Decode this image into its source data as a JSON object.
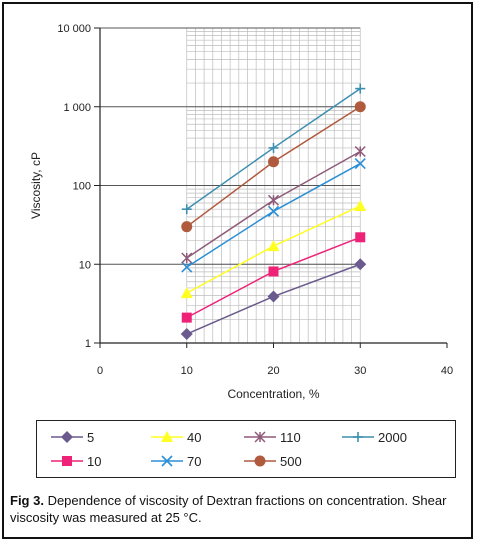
{
  "chart_data": {
    "type": "line",
    "xlabel": "Concentration, %",
    "ylabel": "Viscosity, cP",
    "xlim": [
      0,
      40
    ],
    "ylim": [
      1,
      10000
    ],
    "y_scale": "log",
    "x_ticks": [
      "0",
      "10",
      "20",
      "30",
      "40"
    ],
    "y_ticks": [
      "1",
      "10",
      "100",
      "1 000",
      "10 000"
    ],
    "grid": true,
    "legend_position": "bottom",
    "x": [
      10,
      20,
      30
    ],
    "series": [
      {
        "name": "5",
        "values": [
          1.3,
          3.9,
          10
        ],
        "color": "#6b5a8e",
        "marker": "diamond"
      },
      {
        "name": "10",
        "values": [
          2.1,
          8.1,
          22
        ],
        "color": "#ee2277",
        "marker": "square"
      },
      {
        "name": "40",
        "values": [
          4.3,
          17,
          55
        ],
        "color": "#ffff22",
        "marker": "triangle"
      },
      {
        "name": "70",
        "values": [
          9.2,
          47,
          190
        ],
        "color": "#2b8fd6",
        "marker": "x"
      },
      {
        "name": "110",
        "values": [
          12,
          65,
          270
        ],
        "color": "#8e5a78",
        "marker": "star"
      },
      {
        "name": "500",
        "values": [
          30,
          200,
          1000
        ],
        "color": "#b05a3e",
        "marker": "circle"
      },
      {
        "name": "2000",
        "values": [
          50,
          300,
          1700
        ],
        "color": "#3d8fb0",
        "marker": "plus"
      }
    ],
    "legend_order": [
      "5",
      "40",
      "110",
      "2000",
      "10",
      "70",
      "500"
    ]
  },
  "caption": {
    "label": "Fig 3.",
    "text": " Dependence of viscosity of Dextran fractions on concentration. Shear viscosity was measured at 25 °C."
  }
}
